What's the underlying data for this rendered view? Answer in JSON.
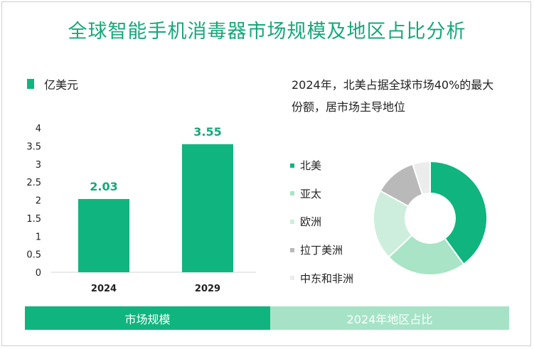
{
  "title": "全球智能手机消毒器市场规模及地区占比分析",
  "colors": {
    "accent": "#10b47f",
    "title": "#16a87a",
    "footer_right": "#a6e3c6",
    "donut": [
      "#10b47f",
      "#a8e4c5",
      "#cdeedc",
      "#b9b9b9",
      "#ececec"
    ]
  },
  "footer": {
    "left_label": "市场规模",
    "right_label": "2024年地区占比"
  },
  "chart_data": [
    {
      "type": "bar",
      "legend": "亿美元",
      "categories": [
        "2024",
        "2029"
      ],
      "values": [
        2.03,
        3.55
      ],
      "data_labels": [
        "2.03",
        "3.55"
      ],
      "ylim": [
        0,
        4
      ],
      "yticks": [
        "0",
        "0.5",
        "1",
        "1.5",
        "2",
        "2.5",
        "3",
        "3.5",
        "4"
      ],
      "grid": false
    },
    {
      "type": "pie",
      "annotation": "2024年，北美占据全球市场40%的最大份额，居市场主导地位",
      "labels": [
        "北美",
        "亚太",
        "欧洲",
        "拉丁美洲",
        "中东和非洲"
      ],
      "values": [
        40,
        23,
        20,
        12,
        5
      ],
      "legend_position": "left"
    }
  ]
}
